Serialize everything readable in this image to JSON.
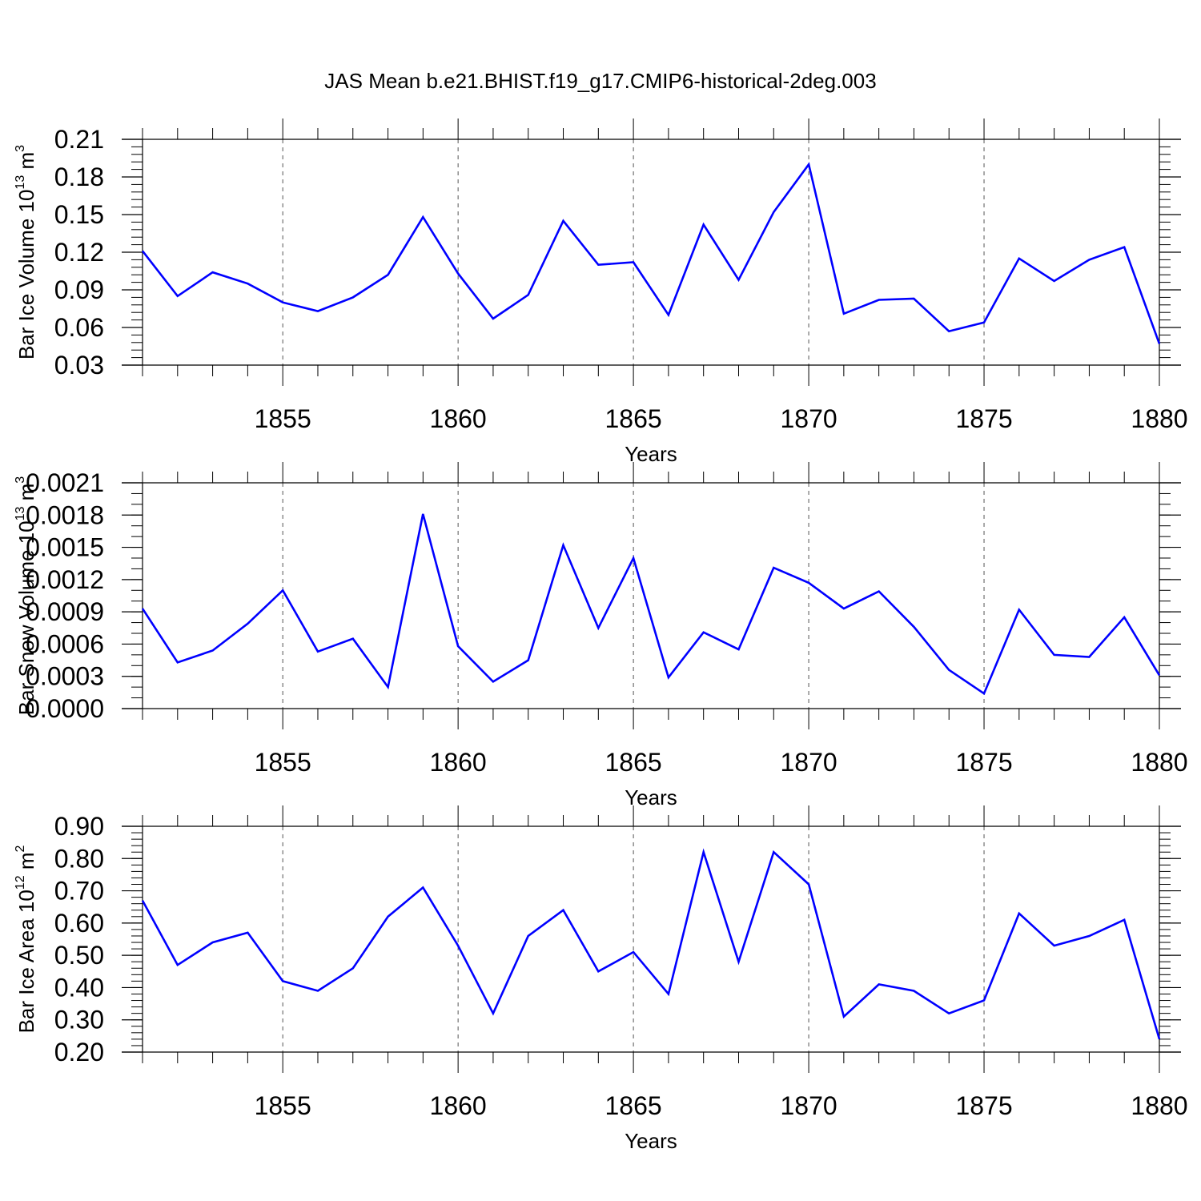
{
  "title": "JAS Mean b.e21.BHIST.f19_g17.CMIP6-historical-2deg.003",
  "chart_data": [
    {
      "type": "line",
      "ylabel": {
        "text": "Bar Ice Volume 10",
        "exp": "13",
        "unit": " m",
        "unit_exp": "3"
      },
      "xlabel": "Years",
      "xlim": [
        1851,
        1880
      ],
      "ylim": [
        0.03,
        0.21
      ],
      "x_ticks": [
        1855,
        1860,
        1865,
        1870,
        1875,
        1880
      ],
      "x_tick_labels": [
        "1855",
        "1860",
        "1865",
        "1870",
        "1875",
        "1880"
      ],
      "y_ticks": [
        0.03,
        0.06,
        0.09,
        0.12,
        0.15,
        0.18,
        0.21
      ],
      "y_tick_labels": [
        "0.03",
        "0.06",
        "0.09",
        "0.12",
        "0.15",
        "0.18",
        "0.21"
      ],
      "y_minor_step": 0.006,
      "grid": "x-dashed",
      "x": [
        1851,
        1852,
        1853,
        1854,
        1855,
        1856,
        1857,
        1858,
        1859,
        1860,
        1861,
        1862,
        1863,
        1864,
        1865,
        1866,
        1867,
        1868,
        1869,
        1870,
        1871,
        1872,
        1873,
        1874,
        1875,
        1876,
        1877,
        1878,
        1879,
        1880
      ],
      "values": [
        0.121,
        0.085,
        0.104,
        0.095,
        0.08,
        0.073,
        0.084,
        0.102,
        0.148,
        0.103,
        0.067,
        0.086,
        0.145,
        0.11,
        0.112,
        0.07,
        0.142,
        0.098,
        0.152,
        0.19,
        0.071,
        0.082,
        0.083,
        0.057,
        0.064,
        0.115,
        0.097,
        0.114,
        0.124,
        0.047
      ],
      "color": "#0000ff"
    },
    {
      "type": "line",
      "ylabel": {
        "text": "Bar Snow Volume 10",
        "exp": "13",
        "unit": " m",
        "unit_exp": "3"
      },
      "xlabel": "Years",
      "xlim": [
        1851,
        1880
      ],
      "ylim": [
        0.0,
        0.0021
      ],
      "x_ticks": [
        1855,
        1860,
        1865,
        1870,
        1875,
        1880
      ],
      "x_tick_labels": [
        "1855",
        "1860",
        "1865",
        "1870",
        "1875",
        "1880"
      ],
      "y_ticks": [
        0.0,
        0.0003,
        0.0006,
        0.0009,
        0.0012,
        0.0015,
        0.0018,
        0.0021
      ],
      "y_tick_labels": [
        "0.0000",
        "0.0003",
        "0.0006",
        "0.0009",
        "0.0012",
        "0.0015",
        "0.0018",
        "0.0021"
      ],
      "y_minor_step": 0.0001,
      "grid": "x-dashed",
      "x": [
        1851,
        1852,
        1853,
        1854,
        1855,
        1856,
        1857,
        1858,
        1859,
        1860,
        1861,
        1862,
        1863,
        1864,
        1865,
        1866,
        1867,
        1868,
        1869,
        1870,
        1871,
        1872,
        1873,
        1874,
        1875,
        1876,
        1877,
        1878,
        1879,
        1880
      ],
      "values": [
        0.00093,
        0.00043,
        0.00054,
        0.00079,
        0.0011,
        0.00053,
        0.00065,
        0.0002,
        0.00181,
        0.00058,
        0.00025,
        0.00045,
        0.00152,
        0.00075,
        0.0014,
        0.00029,
        0.00071,
        0.00055,
        0.00131,
        0.00117,
        0.00093,
        0.00109,
        0.00076,
        0.00036,
        0.00014,
        0.00092,
        0.0005,
        0.00048,
        0.00085,
        0.00031
      ],
      "color": "#0000ff"
    },
    {
      "type": "line",
      "ylabel": {
        "text": "Bar Ice Area 10",
        "exp": "12",
        "unit": " m",
        "unit_exp": "2"
      },
      "xlabel": "Years",
      "xlim": [
        1851,
        1880
      ],
      "ylim": [
        0.2,
        0.9
      ],
      "x_ticks": [
        1855,
        1860,
        1865,
        1870,
        1875,
        1880
      ],
      "x_tick_labels": [
        "1855",
        "1860",
        "1865",
        "1870",
        "1875",
        "1880"
      ],
      "y_ticks": [
        0.2,
        0.3,
        0.4,
        0.5,
        0.6,
        0.7,
        0.8,
        0.9
      ],
      "y_tick_labels": [
        "0.20",
        "0.30",
        "0.40",
        "0.50",
        "0.60",
        "0.70",
        "0.80",
        "0.90"
      ],
      "y_minor_step": 0.02,
      "grid": "x-dashed",
      "x": [
        1851,
        1852,
        1853,
        1854,
        1855,
        1856,
        1857,
        1858,
        1859,
        1860,
        1861,
        1862,
        1863,
        1864,
        1865,
        1866,
        1867,
        1868,
        1869,
        1870,
        1871,
        1872,
        1873,
        1874,
        1875,
        1876,
        1877,
        1878,
        1879,
        1880
      ],
      "values": [
        0.67,
        0.47,
        0.54,
        0.57,
        0.42,
        0.39,
        0.46,
        0.62,
        0.71,
        0.53,
        0.32,
        0.56,
        0.64,
        0.45,
        0.51,
        0.38,
        0.82,
        0.48,
        0.82,
        0.72,
        0.31,
        0.41,
        0.39,
        0.32,
        0.36,
        0.63,
        0.53,
        0.56,
        0.61,
        0.24
      ],
      "color": "#0000ff"
    }
  ]
}
